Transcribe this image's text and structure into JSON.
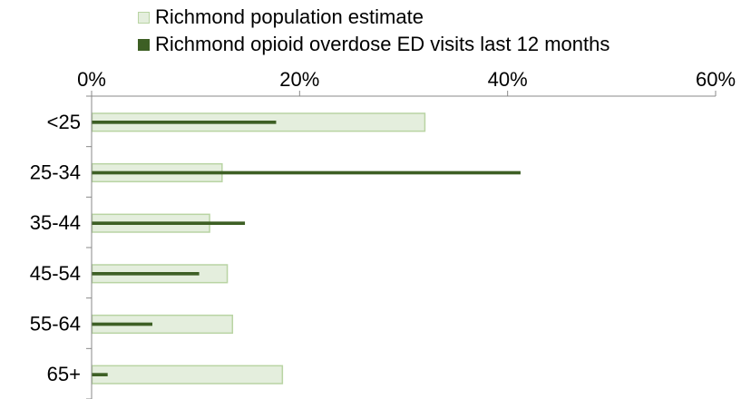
{
  "chart_data": {
    "type": "bar",
    "orientation": "horizontal",
    "categories": [
      "<25",
      "25-34",
      "35-44",
      "45-54",
      "55-64",
      "65+"
    ],
    "series": [
      {
        "name": "Richmond population estimate",
        "values": [
          32,
          12.5,
          11.3,
          13,
          13.5,
          18.3
        ],
        "color": "#e4eedd",
        "border": "#b9d4a3"
      },
      {
        "name": "Richmond opioid overdose ED visits last 12 months",
        "values": [
          17.7,
          41.2,
          14.7,
          10.3,
          5.8,
          1.5
        ],
        "color": "#3d5f24"
      }
    ],
    "xlim": [
      0,
      60
    ],
    "xticks": [
      "0%",
      "20%",
      "40%",
      "60%"
    ],
    "xaxis_position": "top",
    "legend_position": "top",
    "grid": false,
    "title": "",
    "xlabel": "",
    "ylabel": ""
  }
}
